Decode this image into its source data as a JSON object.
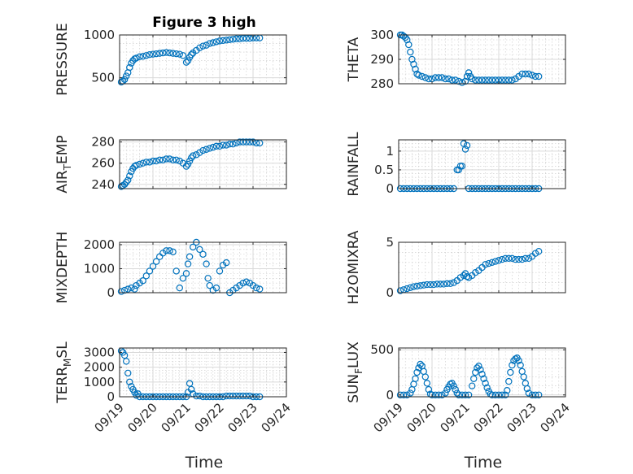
{
  "figure": {
    "title": "Figure 3 high",
    "x_ticks": [
      "09/19",
      "09/20",
      "09/21",
      "09/22",
      "09/23",
      "09/24"
    ],
    "x_label_left": "Time",
    "x_label_right": "Time"
  },
  "chart_data": [
    {
      "type": "scatter",
      "ylabel": "PRESSURE",
      "xlim": [
        0,
        5
      ],
      "ylim": [
        430,
        1000
      ],
      "y_ticks": [
        500,
        1000
      ],
      "y_tick_labels": [
        "500",
        "1000"
      ],
      "grid": true,
      "marker_color": "#0072bd",
      "x": [
        0.05,
        0.1,
        0.15,
        0.2,
        0.25,
        0.3,
        0.35,
        0.4,
        0.45,
        0.5,
        0.6,
        0.7,
        0.8,
        0.9,
        1.0,
        1.1,
        1.2,
        1.3,
        1.4,
        1.5,
        1.6,
        1.7,
        1.8,
        1.9,
        2.0,
        2.05,
        2.1,
        2.15,
        2.2,
        2.3,
        2.4,
        2.5,
        2.6,
        2.7,
        2.8,
        2.9,
        3.0,
        3.1,
        3.2,
        3.3,
        3.4,
        3.5,
        3.6,
        3.7,
        3.8,
        3.9,
        4.0,
        4.1,
        4.2
      ],
      "y": [
        450,
        460,
        480,
        520,
        560,
        620,
        670,
        700,
        720,
        730,
        745,
        750,
        760,
        770,
        775,
        780,
        785,
        790,
        795,
        790,
        785,
        780,
        775,
        760,
        680,
        700,
        740,
        770,
        790,
        820,
        850,
        870,
        880,
        900,
        910,
        920,
        930,
        935,
        940,
        945,
        950,
        955,
        955,
        960,
        960,
        960,
        965,
        965,
        965
      ]
    },
    {
      "type": "scatter",
      "ylabel": "THETA",
      "xlim": [
        0,
        5
      ],
      "ylim": [
        280,
        300
      ],
      "y_ticks": [
        280,
        290,
        300
      ],
      "y_tick_labels": [
        "280",
        "290",
        "300"
      ],
      "grid": true,
      "marker_color": "#0072bd",
      "x": [
        0.05,
        0.1,
        0.15,
        0.2,
        0.25,
        0.3,
        0.35,
        0.4,
        0.45,
        0.5,
        0.55,
        0.6,
        0.7,
        0.8,
        0.9,
        1.0,
        1.1,
        1.2,
        1.3,
        1.4,
        1.5,
        1.6,
        1.7,
        1.8,
        1.9,
        2.0,
        2.05,
        2.1,
        2.15,
        2.2,
        2.3,
        2.4,
        2.5,
        2.6,
        2.7,
        2.8,
        2.9,
        3.0,
        3.1,
        3.2,
        3.3,
        3.4,
        3.5,
        3.6,
        3.7,
        3.8,
        3.9,
        4.0,
        4.1,
        4.2
      ],
      "y": [
        300,
        300,
        299.5,
        299,
        298,
        296,
        293,
        290,
        288,
        286,
        284,
        283.5,
        283,
        282.5,
        282,
        282,
        282.5,
        282.5,
        282.5,
        282,
        282,
        281.5,
        281.5,
        281,
        280.5,
        281,
        283,
        284.5,
        283,
        282,
        281.5,
        281.5,
        281.5,
        281.5,
        281.5,
        281.5,
        281.5,
        281.5,
        281.5,
        281.5,
        281.5,
        281.5,
        282,
        283,
        284,
        284,
        284,
        283.5,
        283,
        283
      ]
    },
    {
      "type": "scatter",
      "ylabel": "AIR_TEMP",
      "ylabel_main": "AIR",
      "ylabel_sub": "T",
      "ylabel_tail": "EMP",
      "xlim": [
        0,
        5
      ],
      "ylim": [
        236,
        282
      ],
      "y_ticks": [
        240,
        260,
        280
      ],
      "y_tick_labels": [
        "240",
        "260",
        "280"
      ],
      "grid": true,
      "marker_color": "#0072bd",
      "x": [
        0.05,
        0.1,
        0.15,
        0.2,
        0.25,
        0.3,
        0.35,
        0.4,
        0.45,
        0.5,
        0.6,
        0.7,
        0.8,
        0.9,
        1.0,
        1.1,
        1.2,
        1.3,
        1.4,
        1.5,
        1.6,
        1.7,
        1.8,
        1.9,
        2.0,
        2.05,
        2.1,
        2.15,
        2.2,
        2.3,
        2.4,
        2.5,
        2.6,
        2.7,
        2.8,
        2.9,
        3.0,
        3.1,
        3.2,
        3.3,
        3.4,
        3.5,
        3.6,
        3.7,
        3.8,
        3.9,
        4.0,
        4.1,
        4.2
      ],
      "y": [
        238,
        239,
        240,
        242,
        244,
        248,
        252,
        255,
        257,
        258,
        259,
        260,
        261,
        261,
        262,
        262,
        263,
        263,
        264,
        264,
        263,
        263,
        262,
        260,
        257,
        259,
        262,
        265,
        267,
        268,
        270,
        272,
        273,
        274,
        275,
        276,
        276,
        277,
        277,
        278,
        278,
        279,
        280,
        280,
        280,
        280,
        280,
        279,
        279
      ]
    },
    {
      "type": "scatter",
      "ylabel": "RAINFALL",
      "xlim": [
        0,
        5
      ],
      "ylim": [
        0,
        1.3
      ],
      "y_ticks": [
        0,
        0.5,
        1
      ],
      "y_tick_labels": [
        "0",
        "0.5",
        "1"
      ],
      "grid": true,
      "marker_color": "#0072bd",
      "x": [
        0.05,
        0.15,
        0.25,
        0.35,
        0.45,
        0.55,
        0.65,
        0.75,
        0.85,
        0.95,
        1.05,
        1.15,
        1.25,
        1.35,
        1.45,
        1.55,
        1.65,
        1.75,
        1.8,
        1.85,
        1.9,
        1.95,
        2.0,
        2.05,
        2.1,
        2.2,
        2.3,
        2.4,
        2.5,
        2.6,
        2.7,
        2.8,
        2.9,
        3.0,
        3.1,
        3.2,
        3.3,
        3.4,
        3.5,
        3.6,
        3.7,
        3.8,
        3.9,
        4.0,
        4.1,
        4.2
      ],
      "y": [
        0,
        0,
        0,
        0,
        0,
        0,
        0,
        0,
        0,
        0,
        0,
        0,
        0,
        0,
        0,
        0,
        0,
        0.5,
        0.5,
        0.6,
        0.6,
        1.2,
        1.05,
        1.15,
        0,
        0,
        0,
        0,
        0,
        0,
        0,
        0,
        0,
        0,
        0,
        0,
        0,
        0,
        0,
        0,
        0,
        0,
        0,
        0,
        0,
        0
      ]
    },
    {
      "type": "scatter",
      "ylabel": "MIXDEPTH",
      "xlim": [
        0,
        5
      ],
      "ylim": [
        0,
        2100
      ],
      "y_ticks": [
        0,
        1000,
        2000
      ],
      "y_tick_labels": [
        "0",
        "1000",
        "2000"
      ],
      "grid": true,
      "marker_color": "#0072bd",
      "x": [
        0.05,
        0.15,
        0.25,
        0.35,
        0.45,
        0.5,
        0.6,
        0.7,
        0.8,
        0.9,
        1.0,
        1.1,
        1.2,
        1.3,
        1.4,
        1.5,
        1.6,
        1.7,
        1.8,
        1.9,
        2.0,
        2.05,
        2.1,
        2.2,
        2.3,
        2.4,
        2.5,
        2.6,
        2.65,
        2.7,
        2.8,
        2.9,
        3.0,
        3.1,
        3.2,
        3.3,
        3.4,
        3.5,
        3.6,
        3.7,
        3.8,
        3.9,
        4.0,
        4.1,
        4.2
      ],
      "y": [
        50,
        100,
        150,
        200,
        150,
        300,
        400,
        500,
        700,
        900,
        1100,
        1300,
        1500,
        1650,
        1750,
        1750,
        1700,
        900,
        200,
        600,
        800,
        1200,
        1500,
        1900,
        2100,
        1800,
        1600,
        1200,
        600,
        300,
        100,
        200,
        900,
        1150,
        1250,
        0,
        100,
        200,
        300,
        400,
        450,
        400,
        300,
        200,
        150
      ]
    },
    {
      "type": "scatter",
      "ylabel": "H2OMIXRA",
      "xlim": [
        0,
        5
      ],
      "ylim": [
        0,
        5
      ],
      "y_ticks": [
        0,
        5
      ],
      "y_tick_labels": [
        "0",
        "5"
      ],
      "grid": true,
      "marker_color": "#0072bd",
      "x": [
        0.05,
        0.15,
        0.25,
        0.35,
        0.45,
        0.55,
        0.65,
        0.75,
        0.85,
        0.95,
        1.05,
        1.15,
        1.25,
        1.35,
        1.45,
        1.55,
        1.65,
        1.75,
        1.85,
        1.95,
        2.0,
        2.05,
        2.1,
        2.2,
        2.3,
        2.4,
        2.5,
        2.6,
        2.7,
        2.8,
        2.9,
        3.0,
        3.1,
        3.2,
        3.3,
        3.4,
        3.5,
        3.6,
        3.7,
        3.8,
        3.9,
        4.0,
        4.1,
        4.2
      ],
      "y": [
        0.2,
        0.3,
        0.4,
        0.5,
        0.6,
        0.65,
        0.7,
        0.75,
        0.8,
        0.8,
        0.8,
        0.85,
        0.85,
        0.85,
        0.9,
        0.9,
        1.0,
        1.2,
        1.5,
        1.7,
        1.9,
        1.6,
        1.5,
        1.7,
        2.0,
        2.2,
        2.5,
        2.8,
        2.9,
        3.0,
        3.1,
        3.2,
        3.3,
        3.4,
        3.4,
        3.4,
        3.3,
        3.3,
        3.3,
        3.4,
        3.4,
        3.6,
        3.9,
        4.1
      ]
    },
    {
      "type": "scatter",
      "ylabel": "TERR_MSL",
      "ylabel_main": "TERR",
      "ylabel_sub": "M",
      "ylabel_tail": "SL",
      "xlim": [
        0,
        5
      ],
      "ylim": [
        0,
        3300
      ],
      "y_ticks": [
        0,
        1000,
        2000,
        3000
      ],
      "y_tick_labels": [
        "0",
        "1000",
        "2000",
        "3000"
      ],
      "grid": true,
      "marker_color": "#0072bd",
      "x": [
        0.05,
        0.1,
        0.15,
        0.2,
        0.25,
        0.3,
        0.35,
        0.4,
        0.45,
        0.5,
        0.55,
        0.6,
        0.7,
        0.8,
        0.9,
        1.0,
        1.1,
        1.2,
        1.3,
        1.4,
        1.5,
        1.6,
        1.7,
        1.8,
        1.9,
        2.0,
        2.05,
        2.1,
        2.15,
        2.2,
        2.3,
        2.4,
        2.5,
        2.6,
        2.7,
        2.8,
        2.9,
        3.0,
        3.1,
        3.2,
        3.3,
        3.4,
        3.5,
        3.6,
        3.7,
        3.8,
        3.9,
        4.0,
        4.1,
        4.2
      ],
      "y": [
        3100,
        3000,
        2800,
        2400,
        1600,
        1000,
        700,
        500,
        300,
        100,
        200,
        0,
        0,
        0,
        0,
        0,
        0,
        0,
        0,
        0,
        0,
        0,
        0,
        0,
        0,
        0,
        300,
        900,
        500,
        200,
        50,
        50,
        0,
        0,
        0,
        0,
        0,
        0,
        0,
        50,
        50,
        50,
        50,
        50,
        50,
        50,
        50,
        0,
        0,
        0
      ]
    },
    {
      "type": "scatter",
      "ylabel": "SUN_FLUX",
      "ylabel_main": "SUN",
      "ylabel_sub": "F",
      "ylabel_tail": "LUX",
      "xlim": [
        0,
        5
      ],
      "ylim": [
        -20,
        520
      ],
      "y_ticks": [
        0,
        500
      ],
      "y_tick_labels": [
        "0",
        "500"
      ],
      "grid": true,
      "marker_color": "#0072bd",
      "x": [
        0.05,
        0.15,
        0.25,
        0.35,
        0.4,
        0.45,
        0.5,
        0.55,
        0.6,
        0.65,
        0.7,
        0.75,
        0.8,
        0.85,
        0.9,
        0.95,
        1.0,
        1.1,
        1.2,
        1.3,
        1.4,
        1.45,
        1.5,
        1.55,
        1.6,
        1.65,
        1.7,
        1.75,
        1.8,
        1.9,
        2.0,
        2.1,
        2.2,
        2.25,
        2.3,
        2.35,
        2.4,
        2.45,
        2.5,
        2.55,
        2.6,
        2.65,
        2.7,
        2.75,
        2.8,
        2.9,
        3.0,
        3.1,
        3.2,
        3.25,
        3.3,
        3.35,
        3.4,
        3.45,
        3.5,
        3.55,
        3.6,
        3.65,
        3.7,
        3.75,
        3.8,
        3.85,
        3.9,
        4.0,
        4.1,
        4.2
      ],
      "y": [
        0,
        0,
        0,
        20,
        60,
        120,
        180,
        250,
        300,
        340,
        320,
        260,
        200,
        130,
        60,
        10,
        0,
        0,
        0,
        0,
        20,
        60,
        90,
        120,
        130,
        100,
        60,
        20,
        0,
        0,
        0,
        0,
        100,
        180,
        250,
        300,
        320,
        280,
        230,
        180,
        130,
        80,
        40,
        10,
        0,
        0,
        0,
        0,
        0,
        50,
        150,
        250,
        330,
        380,
        400,
        410,
        380,
        330,
        260,
        200,
        130,
        70,
        20,
        0,
        0,
        0
      ]
    }
  ]
}
